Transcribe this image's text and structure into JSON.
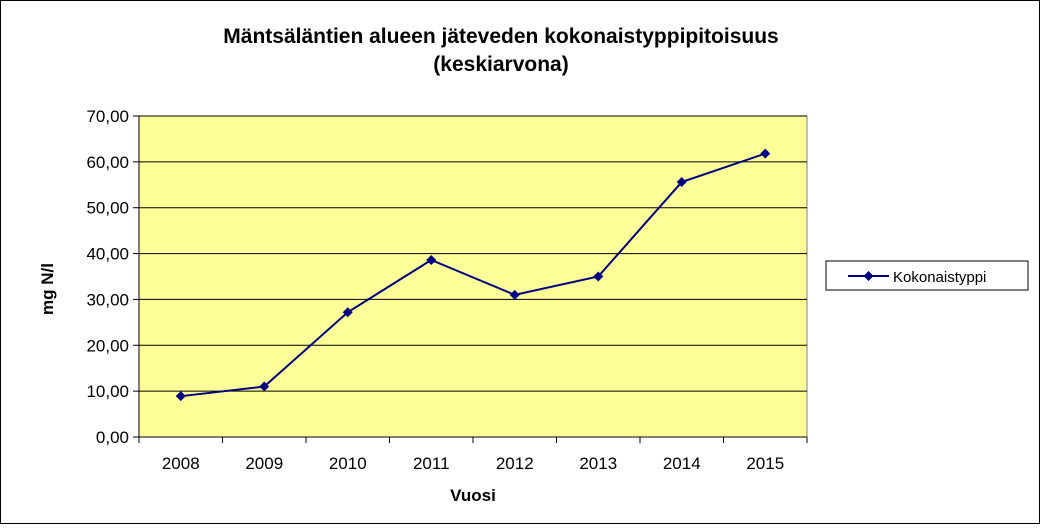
{
  "chart_data": {
    "type": "line",
    "title": "Mäntsäläntien alueen jäteveden kokonaistyppipitoisuus",
    "subtitle": "(keskiarvona)",
    "xlabel": "Vuosi",
    "ylabel": "mg N/l",
    "categories": [
      "2008",
      "2009",
      "2010",
      "2011",
      "2012",
      "2013",
      "2014",
      "2015"
    ],
    "y_ticks": [
      "0,00",
      "10,00",
      "20,00",
      "30,00",
      "40,00",
      "50,00",
      "60,00",
      "70,00"
    ],
    "ylim": [
      0,
      70
    ],
    "series": [
      {
        "name": "Kokonaistyppi",
        "values": [
          8.9,
          11.0,
          27.2,
          38.6,
          31.0,
          35.0,
          55.6,
          61.8
        ],
        "color": "#000080"
      }
    ],
    "grid": true,
    "legend_position": "right",
    "plot_background": "#FFFF99"
  }
}
